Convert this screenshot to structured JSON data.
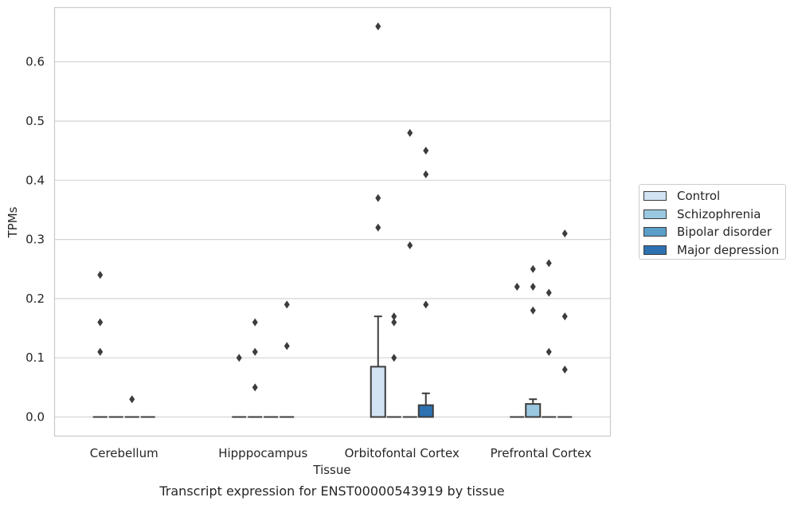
{
  "chart_data": {
    "type": "boxplot",
    "title": "",
    "caption": "Transcript expression for ENST00000543919 by tissue",
    "xlabel": "Tissue",
    "ylabel": "TPMs",
    "ylim": [
      -0.033,
      0.693
    ],
    "yticks": [
      0.0,
      0.1,
      0.2,
      0.3,
      0.4,
      0.5,
      0.6
    ],
    "ytick_labels": [
      "0.0",
      "0.1",
      "0.2",
      "0.3",
      "0.4",
      "0.5",
      "0.6"
    ],
    "grid": "horizontal",
    "legend_position": "right",
    "categories": [
      "Cerebellum",
      "Hipppocampus",
      "Orbitofontal Cortex",
      "Prefrontal Cortex"
    ],
    "series": [
      {
        "name": "Control",
        "color": "#d2e3f3",
        "boxes": [
          {
            "q1": 0,
            "median": 0,
            "q3": 0,
            "whisker_low": 0,
            "whisker_high": 0,
            "outliers": [
              0.24,
              0.16,
              0.11
            ]
          },
          {
            "q1": 0,
            "median": 0,
            "q3": 0,
            "whisker_low": 0,
            "whisker_high": 0,
            "outliers": [
              0.1
            ]
          },
          {
            "q1": 0,
            "median": 0,
            "q3": 0.085,
            "whisker_low": 0,
            "whisker_high": 0.17,
            "outliers": [
              0.66,
              0.37,
              0.32
            ]
          },
          {
            "q1": 0,
            "median": 0,
            "q3": 0,
            "whisker_low": 0,
            "whisker_high": 0,
            "outliers": [
              0.22
            ]
          }
        ]
      },
      {
        "name": "Schizophrenia",
        "color": "#9ac8e0",
        "boxes": [
          {
            "q1": 0,
            "median": 0,
            "q3": 0,
            "whisker_low": 0,
            "whisker_high": 0,
            "outliers": []
          },
          {
            "q1": 0,
            "median": 0,
            "q3": 0,
            "whisker_low": 0,
            "whisker_high": 0,
            "outliers": [
              0.16,
              0.11,
              0.05
            ]
          },
          {
            "q1": 0,
            "median": 0,
            "q3": 0,
            "whisker_low": 0,
            "whisker_high": 0,
            "outliers": [
              0.17,
              0.16,
              0.1
            ]
          },
          {
            "q1": 0,
            "median": 0,
            "q3": 0.022,
            "whisker_low": 0,
            "whisker_high": 0.03,
            "outliers": [
              0.25,
              0.22,
              0.18
            ]
          }
        ]
      },
      {
        "name": "Bipolar disorder",
        "color": "#5a9ec9",
        "boxes": [
          {
            "q1": 0,
            "median": 0,
            "q3": 0,
            "whisker_low": 0,
            "whisker_high": 0,
            "outliers": [
              0.03
            ]
          },
          {
            "q1": 0,
            "median": 0,
            "q3": 0,
            "whisker_low": 0,
            "whisker_high": 0,
            "outliers": []
          },
          {
            "q1": 0,
            "median": 0,
            "q3": 0,
            "whisker_low": 0,
            "whisker_high": 0,
            "outliers": [
              0.48,
              0.29
            ]
          },
          {
            "q1": 0,
            "median": 0,
            "q3": 0,
            "whisker_low": 0,
            "whisker_high": 0,
            "outliers": [
              0.26,
              0.21,
              0.11
            ]
          }
        ]
      },
      {
        "name": "Major depression",
        "color": "#2d71b0",
        "boxes": [
          {
            "q1": 0,
            "median": 0,
            "q3": 0,
            "whisker_low": 0,
            "whisker_high": 0,
            "outliers": []
          },
          {
            "q1": 0,
            "median": 0,
            "q3": 0,
            "whisker_low": 0,
            "whisker_high": 0,
            "outliers": [
              0.19,
              0.12
            ]
          },
          {
            "q1": 0,
            "median": 0,
            "q3": 0.02,
            "whisker_low": 0,
            "whisker_high": 0.04,
            "outliers": [
              0.45,
              0.41,
              0.19
            ]
          },
          {
            "q1": 0,
            "median": 0,
            "q3": 0,
            "whisker_low": 0,
            "whisker_high": 0,
            "outliers": [
              0.31,
              0.17,
              0.08
            ]
          }
        ]
      }
    ]
  }
}
